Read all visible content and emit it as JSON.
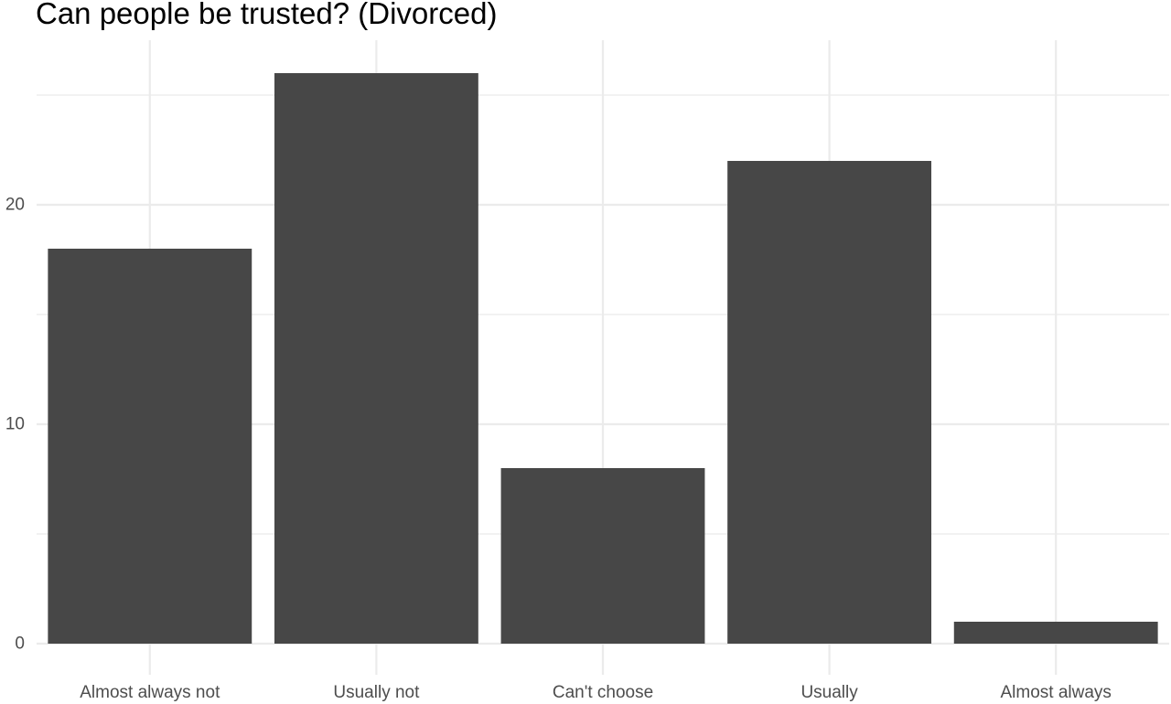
{
  "chart_data": {
    "type": "bar",
    "title": "Can people be trusted? (Divorced)",
    "xlabel": "",
    "ylabel": "",
    "categories": [
      "Almost always not",
      "Usually not",
      "Can't choose",
      "Usually",
      "Almost always"
    ],
    "values": [
      18,
      26,
      8,
      22,
      1
    ],
    "ylim": [
      0,
      27.5
    ],
    "yticks": [
      0,
      10,
      20
    ],
    "y_minor_ticks": [
      5,
      15,
      25
    ],
    "ytick_labels": [
      "0",
      "10",
      "20"
    ],
    "grid": true,
    "legend": "none",
    "bar_color": "#474747",
    "grid_color": "#ebebeb"
  }
}
